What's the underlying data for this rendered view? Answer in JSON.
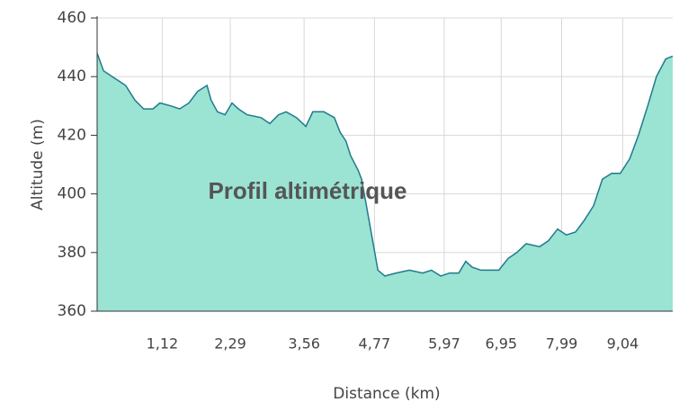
{
  "chart_data": {
    "type": "area",
    "title": "Profil altimétrique",
    "x_label": "Distance (km)",
    "y_label": "Altitude (m)",
    "x": [
      0,
      0.11,
      0.26,
      0.49,
      0.65,
      0.8,
      0.96,
      1.08,
      1.27,
      1.42,
      1.58,
      1.73,
      1.89,
      1.96,
      2.07,
      2.2,
      2.32,
      2.43,
      2.58,
      2.82,
      2.97,
      3.12,
      3.25,
      3.43,
      3.59,
      3.71,
      3.9,
      4.08,
      4.18,
      4.28,
      4.36,
      4.49,
      4.55,
      4.64,
      4.73,
      4.83,
      4.95,
      5.14,
      5.37,
      5.6,
      5.75,
      5.91,
      6.06,
      6.22,
      6.34,
      6.45,
      6.6,
      6.76,
      6.91,
      7.07,
      7.22,
      7.38,
      7.61,
      7.76,
      7.92,
      8.07,
      8.23,
      8.38,
      8.54,
      8.69,
      8.85,
      9.0,
      9.16,
      9.31,
      9.47,
      9.62,
      9.78,
      9.9
    ],
    "series": [
      {
        "name": "Altitude",
        "color": "#1f7a8c",
        "fill": "#9be3d3",
        "values": [
          448,
          442,
          440,
          437,
          432,
          429,
          429,
          431,
          430,
          429,
          431,
          435,
          437,
          432,
          428,
          427,
          431,
          429,
          427,
          426,
          424,
          427,
          428,
          426,
          423,
          428,
          428,
          426,
          421,
          418,
          413,
          408,
          405,
          395,
          385,
          374,
          372,
          373,
          374,
          373,
          374,
          372,
          373,
          373,
          377,
          375,
          374,
          374,
          374,
          378,
          380,
          383,
          382,
          384,
          388,
          386,
          387,
          391,
          396,
          405,
          407,
          407,
          412,
          420,
          430,
          440,
          446,
          447
        ]
      }
    ],
    "xlim": [
      0,
      9.9
    ],
    "ylim": [
      360,
      460
    ],
    "xticks": [
      {
        "value": 1.12,
        "label": "1,12"
      },
      {
        "value": 2.29,
        "label": "2,29"
      },
      {
        "value": 3.56,
        "label": "3,56"
      },
      {
        "value": 4.77,
        "label": "4,77"
      },
      {
        "value": 5.97,
        "label": "5,97"
      },
      {
        "value": 6.95,
        "label": "6,95"
      },
      {
        "value": 7.99,
        "label": "7,99"
      },
      {
        "value": 9.04,
        "label": "9,04"
      }
    ],
    "yticks": [
      360,
      380,
      400,
      420,
      440,
      460
    ],
    "grid": true
  }
}
